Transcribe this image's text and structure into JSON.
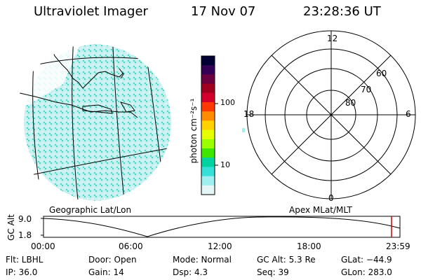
{
  "header": {
    "instrument": "Ultraviolet Imager",
    "date": "17 Nov 07",
    "time": "23:28:36 UT"
  },
  "globe": {
    "caption": "Geographic Lat/Lon"
  },
  "colorbar": {
    "unit_label": "photon cm⁻²s⁻¹",
    "ticks": [
      "100",
      "10"
    ],
    "colors": [
      "#000033",
      "#330055",
      "#6a0040",
      "#a00020",
      "#d4002c",
      "#ff3800",
      "#ff8c00",
      "#ffd200",
      "#e6ff00",
      "#9bff00",
      "#3ee600",
      "#00d2a0",
      "#36e0d8",
      "#9feff0",
      "#e6f6f6"
    ]
  },
  "polar": {
    "caption": "Apex MLat/MLT",
    "mlt_labels": {
      "top": "12",
      "bottom": "0",
      "left": "18",
      "right": "6"
    },
    "lat_labels": [
      "60",
      "70",
      "80"
    ]
  },
  "timeline": {
    "ylabel": "GC Alt",
    "yticks": [
      "9.0",
      "1.8"
    ],
    "xticks": [
      "00:00",
      "06:00",
      "12:00",
      "18:00",
      "23:59"
    ],
    "marker_time": "23:28",
    "marker_color": "#cc0000"
  },
  "status": {
    "flt": "Flt: LBHL",
    "ip": "IP: 36.0",
    "door": "Door: Open",
    "gain": "Gain: 14",
    "mode": "Mode: Normal",
    "dsp": "Dsp:     4.3",
    "gcalt": "GC Alt: 5.3 Re",
    "seq": "Seq: 39",
    "glat": "GLat: −44.9",
    "glon": "GLon: 283.0"
  }
}
